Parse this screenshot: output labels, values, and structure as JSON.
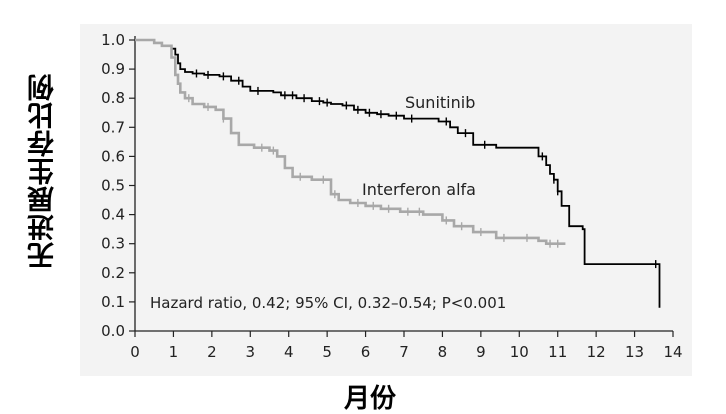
{
  "chart_data": {
    "type": "line",
    "title": "",
    "xlabel": "月份",
    "ylabel": "无进展生存比例",
    "xlim": [
      0,
      14
    ],
    "ylim": [
      0.0,
      1.0
    ],
    "x_ticks": [
      "0",
      "1",
      "2",
      "3",
      "4",
      "5",
      "6",
      "7",
      "8",
      "9",
      "10",
      "11",
      "12",
      "13",
      "14"
    ],
    "y_ticks": [
      "0.0",
      "0.1",
      "0.2",
      "0.3",
      "0.4",
      "0.5",
      "0.6",
      "0.7",
      "0.8",
      "0.9",
      "1.0"
    ],
    "grid": false,
    "annotation": "Hazard ratio, 0.42; 95% CI, 0.32–0.54; P<0.001",
    "series": [
      {
        "name": "Sunitinib",
        "color": "#000000",
        "x": [
          0,
          0.5,
          0.7,
          0.95,
          1.05,
          1.12,
          1.18,
          1.3,
          1.5,
          1.8,
          2.2,
          2.5,
          2.8,
          3.0,
          3.6,
          3.8,
          4.2,
          4.6,
          4.9,
          5.1,
          5.4,
          5.7,
          6.0,
          6.3,
          6.6,
          7.0,
          7.6,
          7.9,
          8.2,
          8.4,
          8.8,
          9.4,
          10.5,
          10.7,
          10.8,
          10.9,
          11.0,
          11.1,
          11.3,
          11.65,
          11.7,
          13.6,
          13.65
        ],
        "y": [
          1.0,
          0.99,
          0.98,
          0.97,
          0.95,
          0.92,
          0.9,
          0.89,
          0.885,
          0.88,
          0.875,
          0.86,
          0.84,
          0.825,
          0.82,
          0.81,
          0.8,
          0.79,
          0.785,
          0.78,
          0.775,
          0.76,
          0.75,
          0.745,
          0.74,
          0.73,
          0.73,
          0.72,
          0.7,
          0.68,
          0.64,
          0.63,
          0.6,
          0.57,
          0.54,
          0.52,
          0.48,
          0.43,
          0.36,
          0.35,
          0.23,
          0.23,
          0.08
        ],
        "end_label": "Sunitinib"
      },
      {
        "name": "Interferon alfa",
        "color": "#a8a8a8",
        "x": [
          0,
          0.5,
          0.7,
          0.95,
          1.05,
          1.12,
          1.18,
          1.3,
          1.5,
          1.8,
          2.1,
          2.3,
          2.5,
          2.7,
          3.1,
          3.5,
          3.7,
          3.9,
          4.1,
          4.6,
          5.1,
          5.3,
          5.6,
          6.0,
          6.4,
          6.9,
          7.5,
          8.0,
          8.3,
          8.8,
          9.4,
          10.5,
          10.7,
          11.2
        ],
        "y": [
          1.0,
          0.99,
          0.98,
          0.94,
          0.88,
          0.85,
          0.82,
          0.8,
          0.78,
          0.77,
          0.76,
          0.73,
          0.68,
          0.64,
          0.63,
          0.62,
          0.6,
          0.56,
          0.53,
          0.52,
          0.47,
          0.45,
          0.44,
          0.43,
          0.42,
          0.41,
          0.4,
          0.38,
          0.36,
          0.34,
          0.32,
          0.31,
          0.3,
          0.3
        ],
        "end_label": "Interferon alfa"
      }
    ]
  }
}
